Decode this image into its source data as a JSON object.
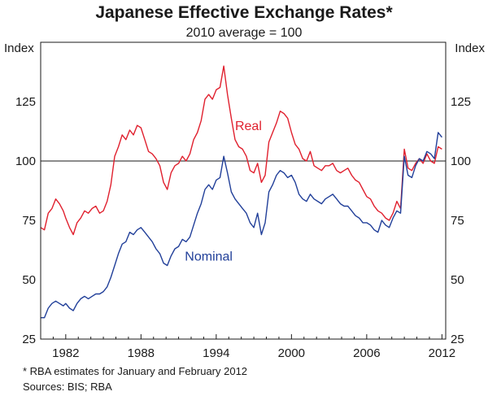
{
  "chart_data": {
    "type": "line",
    "title": "Japanese Effective Exchange Rates*",
    "subtitle": "2010 average = 100",
    "ylabel_left": "Index",
    "ylabel_right": "Index",
    "ylim": [
      25,
      150
    ],
    "yticks": [
      25,
      50,
      75,
      100,
      125
    ],
    "xlim": [
      1980,
      2012.3
    ],
    "xticks": [
      1982,
      1988,
      1994,
      2000,
      2006,
      2012
    ],
    "reference_line": 100,
    "series": [
      {
        "name": "Real",
        "color": "#e0202e",
        "label_at": [
          1995.5,
          113
        ],
        "x": [
          1980.0,
          1980.3,
          1980.6,
          1980.9,
          1981.2,
          1981.5,
          1981.8,
          1982.0,
          1982.3,
          1982.6,
          1982.9,
          1983.2,
          1983.5,
          1983.8,
          1984.1,
          1984.4,
          1984.7,
          1985.0,
          1985.3,
          1985.6,
          1985.9,
          1986.2,
          1986.5,
          1986.8,
          1987.1,
          1987.4,
          1987.7,
          1988.0,
          1988.3,
          1988.6,
          1988.9,
          1989.2,
          1989.5,
          1989.8,
          1990.1,
          1990.4,
          1990.7,
          1991.0,
          1991.3,
          1991.6,
          1991.9,
          1992.2,
          1992.5,
          1992.8,
          1993.1,
          1993.4,
          1993.7,
          1994.0,
          1994.3,
          1994.6,
          1994.9,
          1995.2,
          1995.5,
          1995.8,
          1996.1,
          1996.4,
          1996.7,
          1997.0,
          1997.3,
          1997.6,
          1997.9,
          1998.2,
          1998.5,
          1998.8,
          1999.1,
          1999.4,
          1999.7,
          2000.0,
          2000.3,
          2000.6,
          2000.9,
          2001.2,
          2001.5,
          2001.8,
          2002.1,
          2002.4,
          2002.7,
          2003.0,
          2003.3,
          2003.6,
          2003.9,
          2004.2,
          2004.5,
          2004.8,
          2005.1,
          2005.4,
          2005.7,
          2006.0,
          2006.3,
          2006.6,
          2006.9,
          2007.2,
          2007.5,
          2007.8,
          2008.1,
          2008.4,
          2008.7,
          2009.0,
          2009.3,
          2009.6,
          2009.9,
          2010.2,
          2010.5,
          2010.8,
          2011.1,
          2011.4,
          2011.7,
          2012.0
        ],
        "values": [
          72,
          71,
          78,
          80,
          84,
          82,
          79,
          76,
          72,
          69,
          74,
          76,
          79,
          78,
          80,
          81,
          78,
          79,
          83,
          90,
          102,
          106,
          111,
          109,
          113,
          111,
          115,
          114,
          109,
          104,
          103,
          101,
          98,
          91,
          88,
          95,
          98,
          99,
          102,
          100,
          103,
          109,
          112,
          117,
          126,
          128,
          126,
          130,
          131,
          140,
          128,
          118,
          109,
          106,
          105,
          102,
          96,
          95,
          99,
          91,
          94,
          108,
          112,
          116,
          121,
          120,
          118,
          112,
          107,
          105,
          101,
          100,
          104,
          98,
          97,
          96,
          98,
          98,
          99,
          96,
          95,
          96,
          97,
          94,
          92,
          91,
          88,
          85,
          84,
          81,
          79,
          78,
          76,
          75,
          78,
          83,
          80,
          105,
          97,
          96,
          99,
          101,
          99,
          103,
          100,
          99,
          106,
          105
        ]
      },
      {
        "name": "Nominal",
        "color": "#213f99",
        "label_at": [
          1991.5,
          58
        ],
        "x": [
          1980.0,
          1980.3,
          1980.6,
          1980.9,
          1981.2,
          1981.5,
          1981.8,
          1982.0,
          1982.3,
          1982.6,
          1982.9,
          1983.2,
          1983.5,
          1983.8,
          1984.1,
          1984.4,
          1984.7,
          1985.0,
          1985.3,
          1985.6,
          1985.9,
          1986.2,
          1986.5,
          1986.8,
          1987.1,
          1987.4,
          1987.7,
          1988.0,
          1988.3,
          1988.6,
          1988.9,
          1989.2,
          1989.5,
          1989.8,
          1990.1,
          1990.4,
          1990.7,
          1991.0,
          1991.3,
          1991.6,
          1991.9,
          1992.2,
          1992.5,
          1992.8,
          1993.1,
          1993.4,
          1993.7,
          1994.0,
          1994.3,
          1994.6,
          1994.9,
          1995.2,
          1995.5,
          1995.8,
          1996.1,
          1996.4,
          1996.7,
          1997.0,
          1997.3,
          1997.6,
          1997.9,
          1998.2,
          1998.5,
          1998.8,
          1999.1,
          1999.4,
          1999.7,
          2000.0,
          2000.3,
          2000.6,
          2000.9,
          2001.2,
          2001.5,
          2001.8,
          2002.1,
          2002.4,
          2002.7,
          2003.0,
          2003.3,
          2003.6,
          2003.9,
          2004.2,
          2004.5,
          2004.8,
          2005.1,
          2005.4,
          2005.7,
          2006.0,
          2006.3,
          2006.6,
          2006.9,
          2007.2,
          2007.5,
          2007.8,
          2008.1,
          2008.4,
          2008.7,
          2009.0,
          2009.3,
          2009.6,
          2009.9,
          2010.2,
          2010.5,
          2010.8,
          2011.1,
          2011.4,
          2011.7,
          2012.0
        ],
        "values": [
          34,
          34,
          38,
          40,
          41,
          40,
          39,
          40,
          38,
          37,
          40,
          42,
          43,
          42,
          43,
          44,
          44,
          45,
          47,
          51,
          56,
          61,
          65,
          66,
          70,
          69,
          71,
          72,
          70,
          68,
          66,
          63,
          61,
          57,
          56,
          60,
          63,
          64,
          67,
          66,
          68,
          73,
          78,
          82,
          88,
          90,
          88,
          92,
          93,
          102,
          95,
          87,
          84,
          82,
          80,
          78,
          74,
          72,
          78,
          69,
          74,
          87,
          90,
          94,
          96,
          95,
          93,
          94,
          91,
          86,
          84,
          83,
          86,
          84,
          83,
          82,
          84,
          85,
          86,
          84,
          82,
          81,
          81,
          79,
          77,
          76,
          74,
          74,
          73,
          71,
          70,
          75,
          73,
          72,
          76,
          79,
          78,
          102,
          94,
          93,
          98,
          101,
          100,
          104,
          103,
          101,
          112,
          110
        ]
      }
    ],
    "footnote": "*      RBA estimates for January and February 2012",
    "sources": "Sources: BIS; RBA"
  }
}
